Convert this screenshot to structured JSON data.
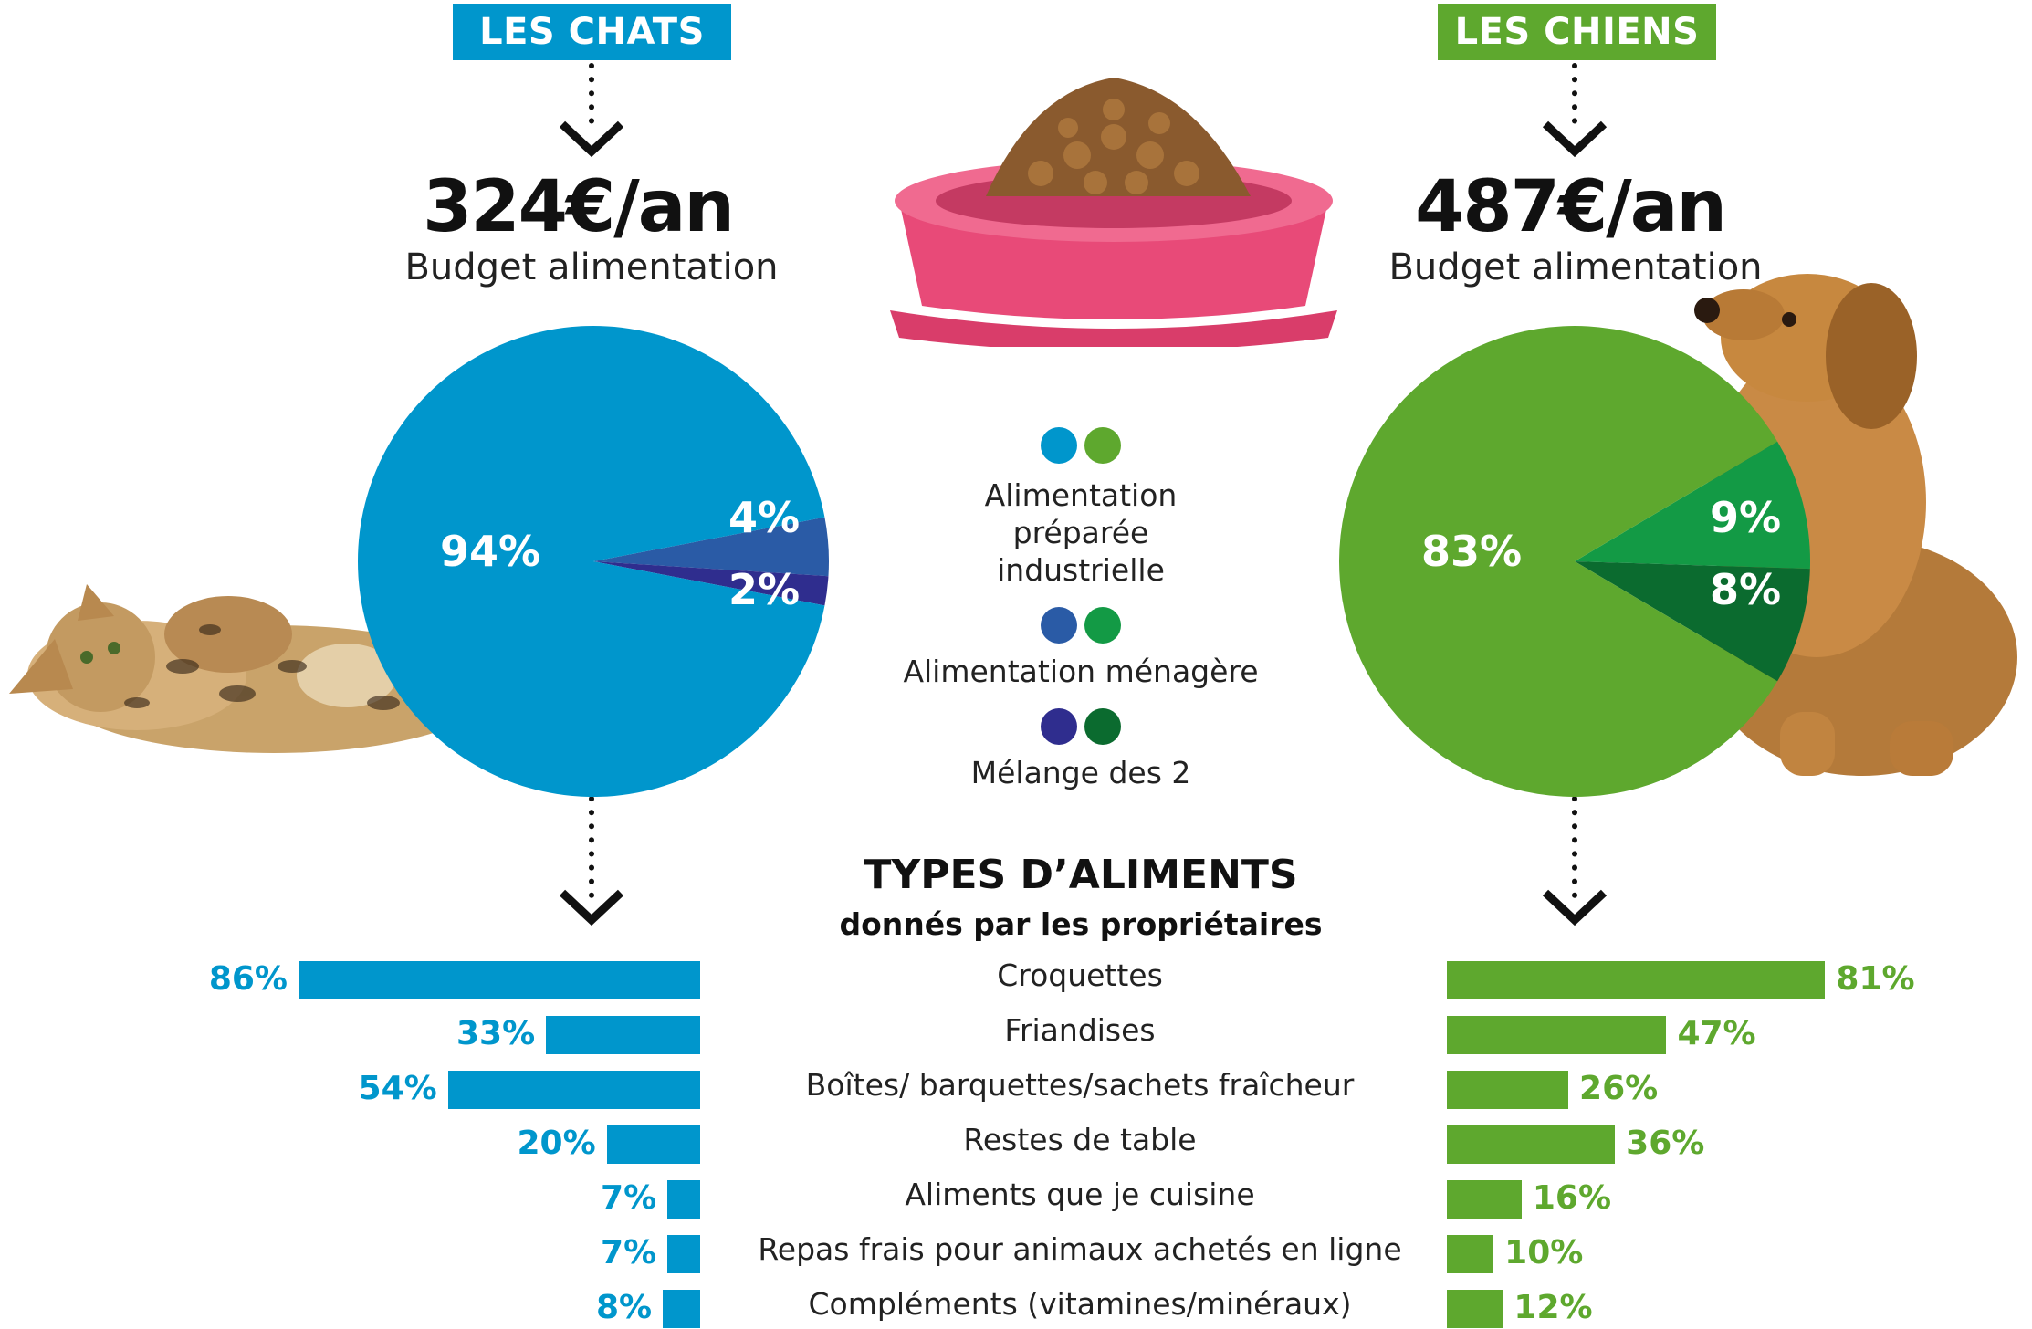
{
  "cats": {
    "badge": "LES CHATS",
    "budget": "324€/an",
    "budget_label": "Budget alimentation",
    "color": "#0096cc"
  },
  "dogs": {
    "badge": "LES CHIENS",
    "budget": "487€/an",
    "budget_label": "Budget alimentation",
    "color": "#5ea82e"
  },
  "legend": {
    "items": [
      {
        "label": "Alimentation préparée industrielle",
        "colors": [
          "#0096cc",
          "#5ea82e"
        ]
      },
      {
        "label": "Alimentation ménagère",
        "colors": [
          "#2a5ba6",
          "#139a45"
        ]
      },
      {
        "label": "Mélange des 2",
        "colors": [
          "#2f2d8e",
          "#0b6b2f"
        ]
      }
    ]
  },
  "types": {
    "title": "TYPES D’ALIMENTS",
    "subtitle": "donnés par les propriétaires"
  },
  "chart_data": [
    {
      "type": "pie",
      "title": "LES CHATS",
      "slices": [
        {
          "label": "94%",
          "category": "Alimentation préparée industrielle",
          "value": 94,
          "color": "#0096cc"
        },
        {
          "label": "4%",
          "category": "Alimentation ménagère",
          "value": 4,
          "color": "#2a5ba6"
        },
        {
          "label": "2%",
          "category": "Mélange des 2",
          "value": 2,
          "color": "#2f2d8e"
        }
      ]
    },
    {
      "type": "pie",
      "title": "LES CHIENS",
      "slices": [
        {
          "label": "83%",
          "category": "Alimentation préparée industrielle",
          "value": 83,
          "color": "#5ea82e"
        },
        {
          "label": "9%",
          "category": "Alimentation ménagère",
          "value": 9,
          "color": "#139a45"
        },
        {
          "label": "8%",
          "category": "Mélange des 2",
          "value": 8,
          "color": "#0b6b2f"
        }
      ]
    },
    {
      "type": "bar",
      "title": "TYPES D’ALIMENTS",
      "categories": [
        "Croquettes",
        "Friandises",
        "Boîtes/ barquettes/sachets fraîcheur",
        "Restes de table",
        "Aliments que je cuisine",
        "Repas frais pour animaux achetés en ligne",
        "Compléments (vitamines/minéraux)"
      ],
      "series": [
        {
          "name": "LES CHATS",
          "values": [
            86,
            33,
            54,
            20,
            7,
            7,
            8
          ],
          "labels": [
            "86%",
            "33%",
            "54%",
            "20%",
            "7%",
            "7%",
            "8%"
          ],
          "color": "#0096cc"
        },
        {
          "name": "LES CHIENS",
          "values": [
            81,
            47,
            26,
            36,
            16,
            10,
            12
          ],
          "labels": [
            "81%",
            "47%",
            "26%",
            "36%",
            "16%",
            "10%",
            "12%"
          ],
          "color": "#5ea82e"
        }
      ]
    }
  ]
}
